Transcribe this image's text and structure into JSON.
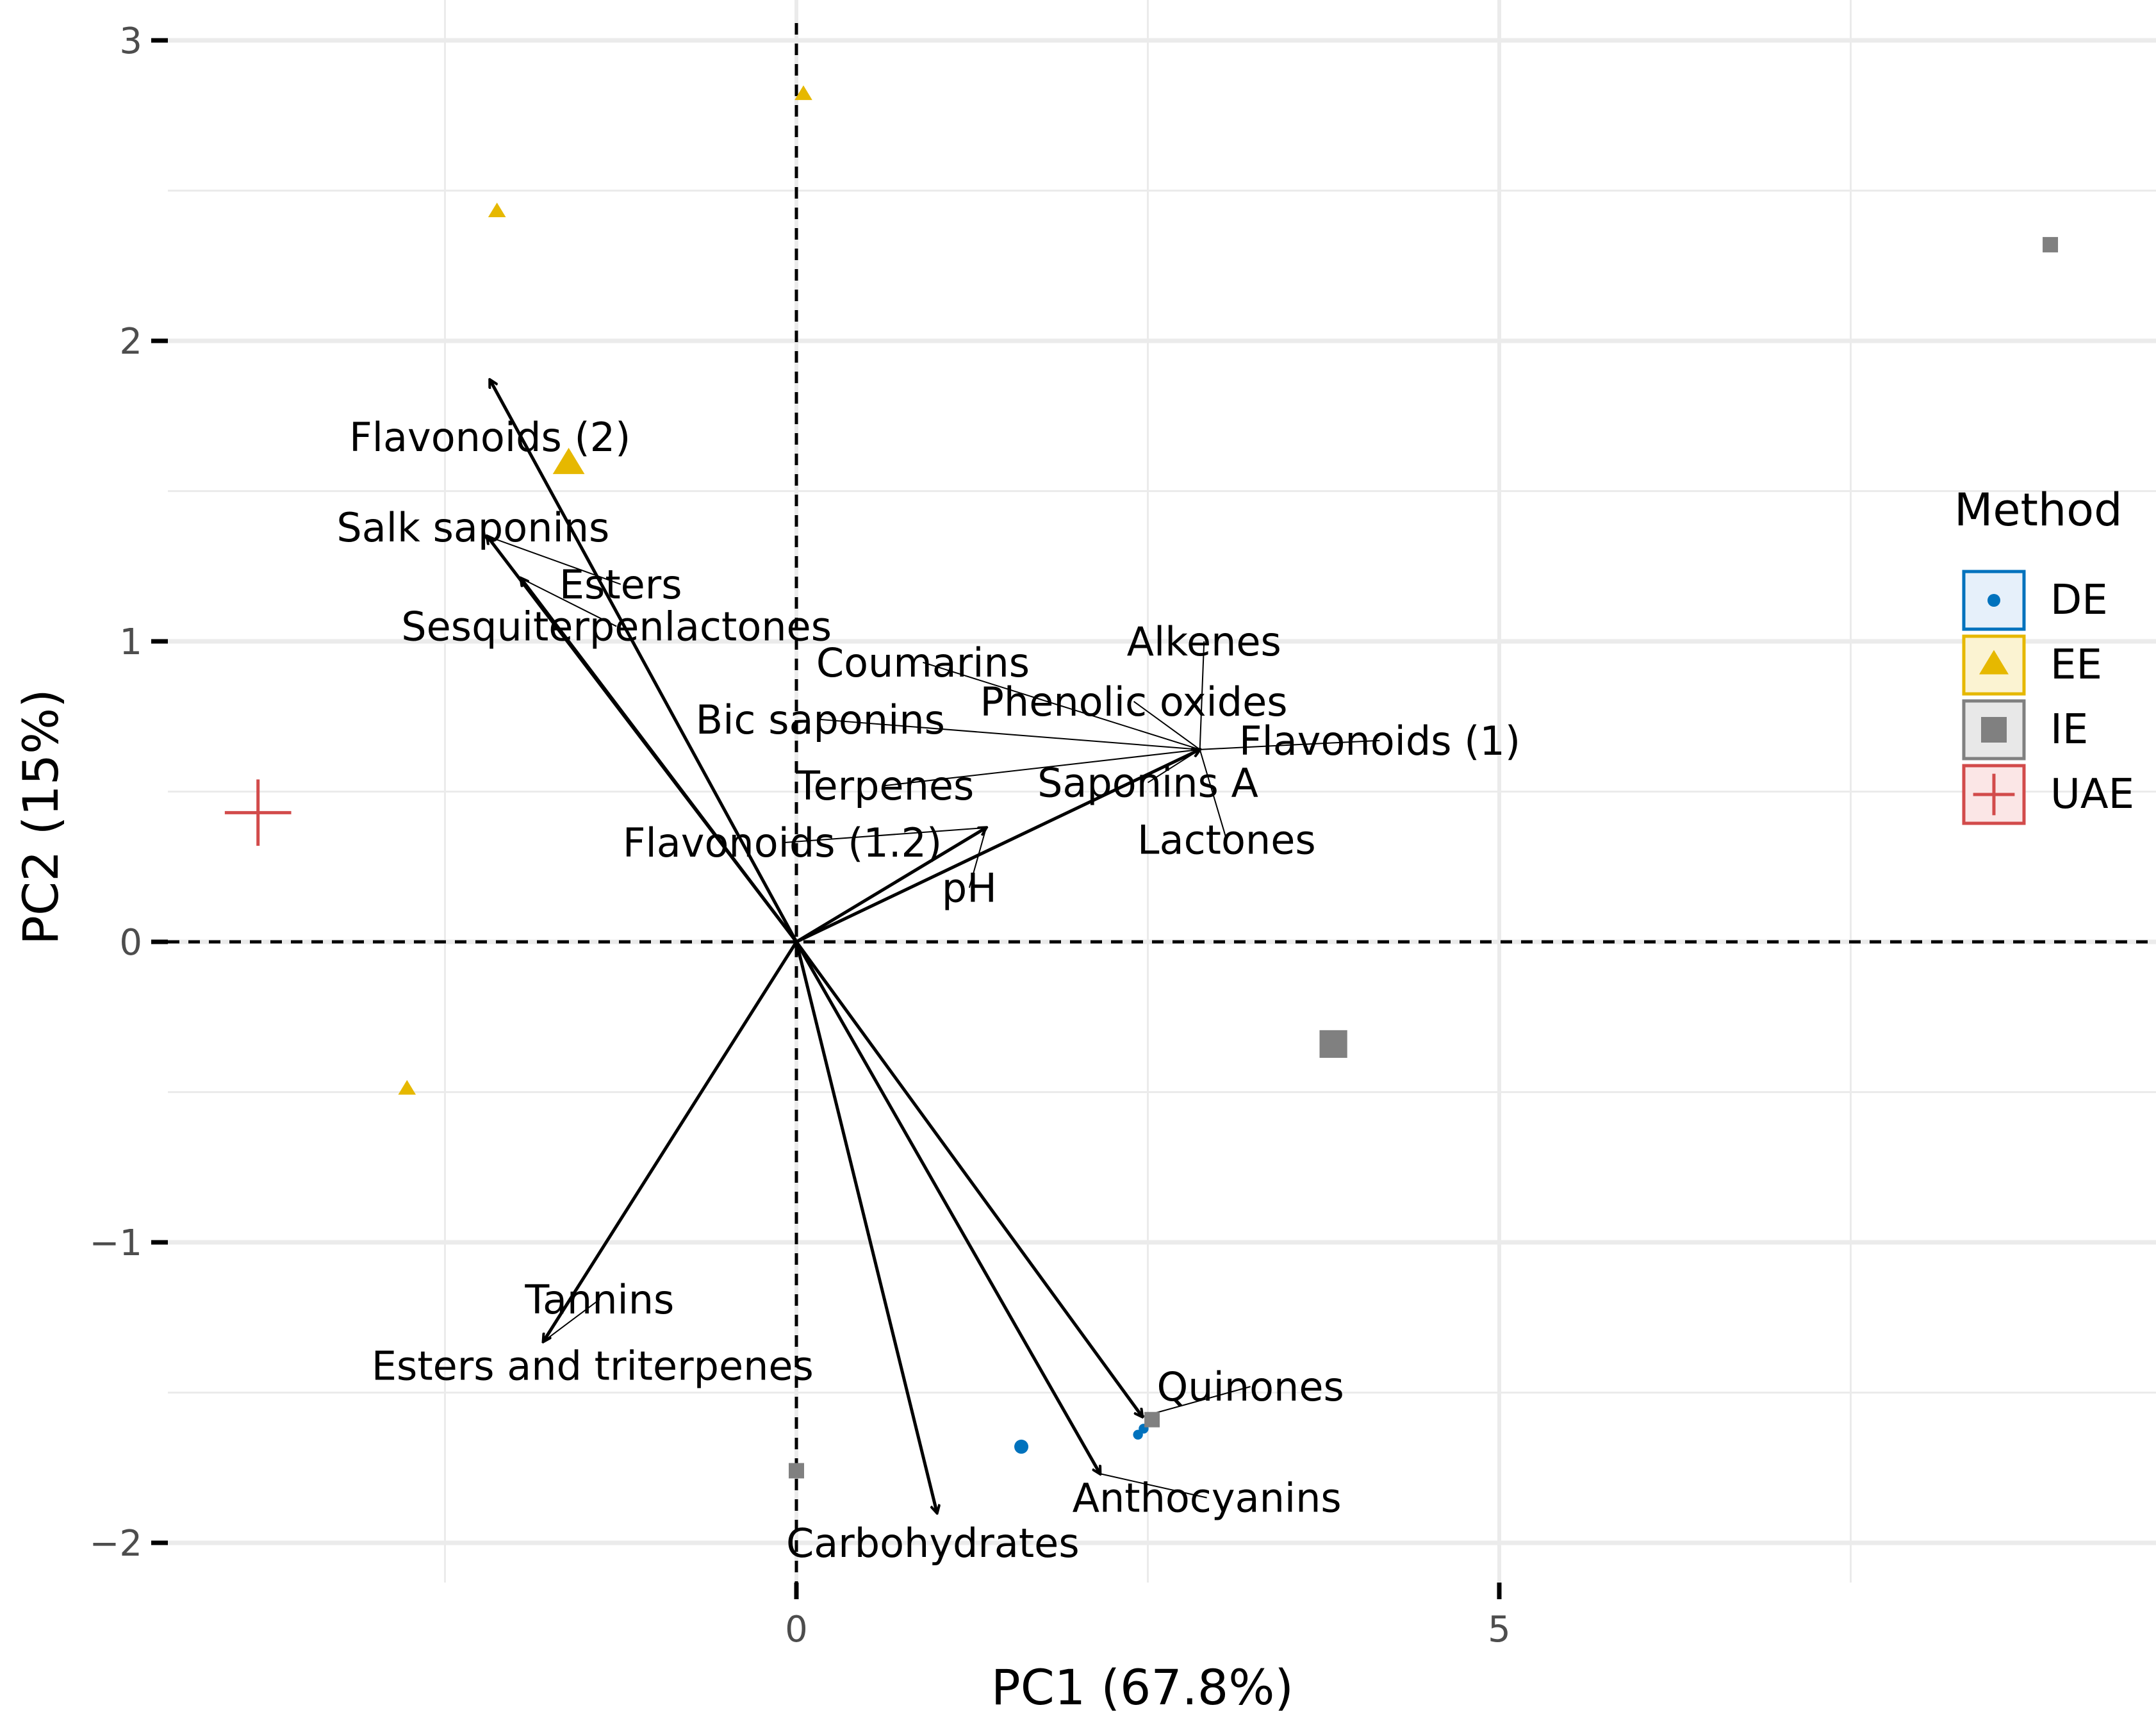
{
  "chart_data": {
    "type": "scatter",
    "subtype": "pca-biplot",
    "title": "",
    "xlabel": "PC1 (67.8%)",
    "ylabel": "PC2 (15%)",
    "xlim": [
      -4.4,
      9.6
    ],
    "ylim": [
      -2.12,
      3.05
    ],
    "xticks": [
      0,
      5
    ],
    "xtick_labels": [
      "0",
      "5"
    ],
    "yticks": [
      -2,
      -1,
      0,
      1,
      2,
      3
    ],
    "ytick_labels": [
      "−2",
      "−1",
      "0",
      "1",
      "2",
      "3"
    ],
    "grid": true,
    "legend": {
      "title": "Method",
      "position": "right",
      "entries": [
        {
          "label": "DE",
          "shape": "circle",
          "color": "#0072bd"
        },
        {
          "label": "EE",
          "shape": "triangle",
          "color": "#e6b800"
        },
        {
          "label": "IE",
          "shape": "square",
          "color": "#808080"
        },
        {
          "label": "UAE",
          "shape": "cross",
          "color": "#d24b4b"
        }
      ]
    },
    "series": [
      {
        "name": "DE",
        "shape": "circle",
        "color": "#0072bd",
        "points": [
          {
            "x": 1.6,
            "y": -1.68,
            "s": 1
          },
          {
            "x": 2.43,
            "y": -1.64,
            "s": 0.6
          },
          {
            "x": 2.47,
            "y": -1.62,
            "s": 0.6
          }
        ]
      },
      {
        "name": "EE",
        "shape": "triangle",
        "color": "#e6b800",
        "points": [
          {
            "x": 0.05,
            "y": 2.82,
            "s": 1
          },
          {
            "x": -2.13,
            "y": 2.43,
            "s": 1
          },
          {
            "x": -1.62,
            "y": 1.59,
            "s": 2
          },
          {
            "x": -2.77,
            "y": -0.49,
            "s": 1
          }
        ]
      },
      {
        "name": "IE",
        "shape": "square",
        "color": "#808080",
        "points": [
          {
            "x": 8.92,
            "y": 2.32,
            "s": 1
          },
          {
            "x": 3.82,
            "y": -0.34,
            "s": 2
          },
          {
            "x": 2.53,
            "y": -1.59,
            "s": 1
          },
          {
            "x": 0.0,
            "y": -1.76,
            "s": 1
          }
        ]
      },
      {
        "name": "UAE",
        "shape": "cross",
        "color": "#d24b4b",
        "points": [
          {
            "x": -3.83,
            "y": 0.43,
            "s": 2
          }
        ]
      }
    ],
    "loadings": [
      {
        "name": "Flavonoids (2)",
        "x": -2.18,
        "y": 1.87,
        "lx": -2.18,
        "ly": 1.68
      },
      {
        "name": "Salk saponins",
        "x": -2.2,
        "y": 1.35,
        "lx": -2.3,
        "ly": 1.38
      },
      {
        "name": "Esters",
        "x": -2.2,
        "y": 1.35,
        "lx": -1.25,
        "ly": 1.19
      },
      {
        "name": "Sesquiterpenlactones",
        "x": -1.96,
        "y": 1.21,
        "lx": -1.28,
        "ly": 1.05
      },
      {
        "name": "Coumarins",
        "x": 2.87,
        "y": 0.64,
        "lx": 0.9,
        "ly": 0.93
      },
      {
        "name": "Alkenes",
        "x": 2.87,
        "y": 0.64,
        "lx": 2.9,
        "ly": 1.0
      },
      {
        "name": "Phenolic oxides",
        "x": 2.87,
        "y": 0.64,
        "lx": 2.4,
        "ly": 0.8
      },
      {
        "name": "Bic saponins",
        "x": 2.87,
        "y": 0.64,
        "lx": 0.17,
        "ly": 0.74
      },
      {
        "name": "Flavonoids (1)",
        "x": 2.87,
        "y": 0.64,
        "lx": 4.15,
        "ly": 0.67
      },
      {
        "name": "Terpenes",
        "x": 2.87,
        "y": 0.64,
        "lx": 0.63,
        "ly": 0.52
      },
      {
        "name": "Saponins A",
        "x": 2.87,
        "y": 0.64,
        "lx": 2.5,
        "ly": 0.53
      },
      {
        "name": "Lactones",
        "x": 2.87,
        "y": 0.64,
        "lx": 3.06,
        "ly": 0.34
      },
      {
        "name": "Flavonoids (1.2)",
        "x": 1.35,
        "y": 0.38,
        "lx": -0.1,
        "ly": 0.33
      },
      {
        "name": "pH",
        "x": 1.35,
        "y": 0.38,
        "lx": 1.23,
        "ly": 0.18
      },
      {
        "name": "Tannins",
        "x": -1.8,
        "y": -1.33,
        "lx": -1.4,
        "ly": -1.19
      },
      {
        "name": "Esters and triterpenes",
        "x": -1.8,
        "y": -1.33,
        "lx": -1.45,
        "ly": -1.41
      },
      {
        "name": "Quinones",
        "x": 2.46,
        "y": -1.58,
        "lx": 3.23,
        "ly": -1.48
      },
      {
        "name": "Anthocyanins",
        "x": 2.16,
        "y": -1.77,
        "lx": 2.92,
        "ly": -1.85
      },
      {
        "name": "Carbohydrates",
        "x": 1.0,
        "y": -1.9,
        "lx": 0.97,
        "ly": -2.0
      }
    ]
  }
}
